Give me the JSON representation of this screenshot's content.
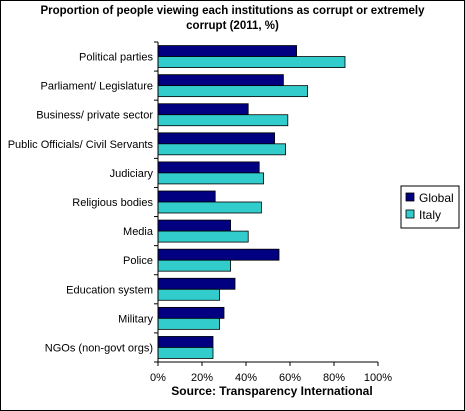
{
  "chart_data": {
    "type": "bar",
    "orientation": "horizontal",
    "title_line1": "Proportion of  people viewing each institutions as corrupt or extremely",
    "title_line2": "corrupt (2011, %)",
    "xlabel": "Source: Transparency International",
    "ylabel": "",
    "xlim": [
      0,
      100
    ],
    "x_ticks": [
      "0%",
      "20%",
      "40%",
      "60%",
      "80%",
      "100%"
    ],
    "grid": false,
    "legend_position": "right",
    "categories": [
      "Political parties",
      "Parliament/ Legislature",
      "Business/ private sector",
      "Public Officials/ Civil Servants",
      "Judiciary",
      "Religious bodies",
      "Media",
      "Police",
      "Education system",
      "Military",
      "NGOs (non-govt orgs)"
    ],
    "series": [
      {
        "name": "Global",
        "color": "#000080",
        "values": [
          63,
          57,
          41,
          53,
          46,
          26,
          33,
          55,
          35,
          30,
          25
        ]
      },
      {
        "name": "Italy",
        "color": "#33CCCC",
        "values": [
          85,
          68,
          59,
          58,
          48,
          47,
          41,
          33,
          28,
          28,
          25
        ]
      }
    ]
  }
}
